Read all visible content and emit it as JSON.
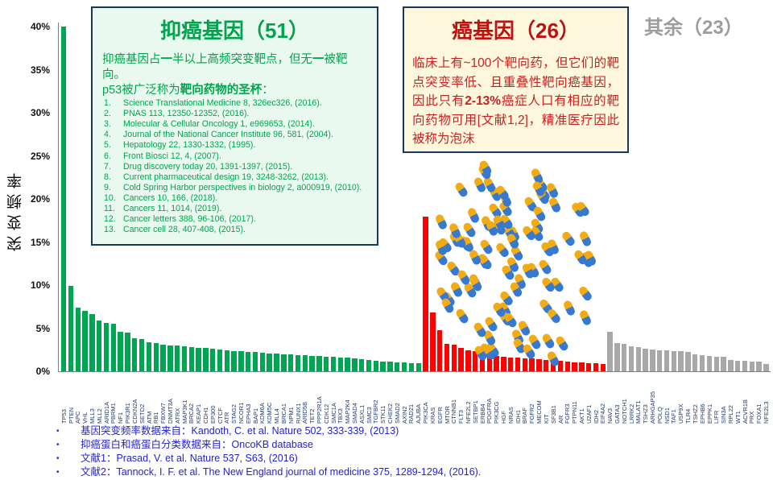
{
  "y_axis": {
    "title": "突变频率"
  },
  "chart_data": {
    "type": "bar",
    "title": "",
    "xlabel": "",
    "ylabel": "突变频率",
    "ylim": [
      0,
      40
    ],
    "yticks_percent": [
      0,
      5,
      10,
      15,
      20,
      25,
      30,
      35,
      40
    ],
    "grid": false,
    "legend_position": "none",
    "groups": [
      {
        "name": "tumor-suppressor-genes",
        "label": "抑癌基因（51）",
        "color": "#00A551",
        "genes": [
          "TP53",
          "PTEN",
          "APC",
          "VHL",
          "MLL3",
          "MLL2",
          "ARID1A",
          "PBRM1",
          "NF1",
          "PIK3R1",
          "CDKN2A",
          "SETD2",
          "ATM",
          "RB1",
          "FBXW7",
          "DNMT3A",
          "ATRX",
          "MAP3K1",
          "BRCA2",
          "KEAP1",
          "CDH1",
          "EP300",
          "CTCF",
          "ATR",
          "STAG2",
          "NCOR1",
          "EPHA3",
          "BAP1",
          "KDM6A",
          "KDM5C",
          "MLL4",
          "BRCA1",
          "NPM1",
          "RUNX1",
          "ARID5B",
          "TET2",
          "PPP2R1A",
          "CDK12",
          "SMC1A",
          "TBX3",
          "MAP2K4",
          "SMAD4",
          "ASXL1",
          "SMC3",
          "TGFBR2",
          "STK11",
          "CHEK2",
          "SMAD2",
          "AXIN2",
          "RAD21",
          "AJUBA"
        ],
        "values": [
          40,
          9.9,
          7.4,
          7.0,
          6.6,
          5.9,
          5.6,
          5.5,
          4.6,
          4.5,
          3.8,
          3.7,
          3.4,
          3.3,
          3.1,
          3.0,
          2.95,
          2.9,
          2.8,
          2.75,
          2.7,
          2.65,
          2.55,
          2.45,
          2.35,
          2.3,
          2.25,
          2.2,
          2.15,
          2.1,
          2.05,
          2.0,
          1.95,
          1.9,
          1.85,
          1.8,
          1.75,
          1.7,
          1.65,
          1.6,
          1.55,
          1.5,
          1.4,
          1.3,
          1.25,
          1.15,
          1.1,
          1.05,
          1.0,
          0.95,
          0.9
        ]
      },
      {
        "name": "oncogenes",
        "label": "癌基因（26）",
        "color": "#FF0000",
        "genes": [
          "PIK3CA",
          "KRAS",
          "EGFR",
          "MTOR",
          "CTNNB1",
          "FLT3",
          "NFE2L2",
          "SETBP1",
          "ERBB4",
          "PDGFRA",
          "PIK3CG",
          "HGF",
          "NRAS",
          "IDH1",
          "BRAF",
          "FGFR2",
          "MECOM",
          "KIT",
          "SF3B1",
          "AR",
          "FGFR3",
          "PTPN11",
          "AKT1",
          "U2AF1",
          "IDH2",
          "EIF4A2"
        ],
        "values": [
          17.9,
          6.8,
          4.8,
          3.2,
          3.1,
          2.7,
          2.4,
          2.3,
          2.1,
          1.9,
          1.8,
          1.7,
          1.6,
          1.55,
          1.5,
          1.45,
          1.4,
          1.35,
          1.25,
          1.2,
          1.1,
          1.05,
          1.0,
          0.95,
          0.9,
          0.85
        ]
      },
      {
        "name": "others",
        "label": "其余（23）",
        "color": "#A8A8A8",
        "genes": [
          "NAV3",
          "GATA3",
          "NOTCH1",
          "LRRK2",
          "MALAT1",
          "TSHZ3",
          "ARHGAP35",
          "POLQ",
          "NSD1",
          "TAF1",
          "USP9X",
          "TLR4",
          "TSHZ2",
          "EPHB6",
          "EPPK1",
          "LIFR",
          "SIN3A",
          "RPL22",
          "WT1",
          "ACVR1B",
          "PRX",
          "FOXA1",
          "NFE2L3"
        ],
        "values": [
          4.6,
          3.3,
          3.2,
          2.9,
          2.8,
          2.65,
          2.5,
          2.45,
          2.4,
          2.35,
          2.3,
          2.2,
          2.0,
          1.9,
          1.8,
          1.7,
          1.65,
          1.3,
          1.25,
          1.2,
          1.15,
          1.1,
          0.8
        ]
      }
    ]
  },
  "suppressor_box": {
    "title": "抑癌基因（51）",
    "body1_segments": [
      {
        "t": "抑癌基因占"
      },
      {
        "t": "一",
        "b": 1
      },
      {
        "t": "半以上高频突变靶点，但无"
      },
      {
        "t": "一",
        "b": 1
      },
      {
        "t": "被靶向。"
      }
    ],
    "body2_segments": [
      {
        "t": "p53被广泛称为"
      },
      {
        "t": "靶向药物的圣杯",
        "b": 1
      },
      {
        "t": "："
      }
    ],
    "references": [
      "Science Translational Medicine 8, 326ec326, (2016).",
      "PNAS 113, 12350-12352, (2016).",
      "Molecular & Cellular Oncology 1, e969653, (2014).",
      "Journal of the National Cancer Institute 96, 581, (2004).",
      "Hepatology 22, 1330-1332, (1995).",
      "Front Biosci 12, 4, (2007).",
      "Drug discovery today 20, 1391-1397, (2015).",
      "Current pharmaceutical design 19, 3248-3262, (2013).",
      "Cold Spring Harbor perspectives in biology 2, a000919, (2010).",
      "Cancers 10, 166, (2018).",
      "Cancers 11, 1014, (2019).",
      "Cancer letters 388, 96-106, (2017).",
      "Cancer cell 28, 407-408, (2015)."
    ]
  },
  "oncogene_box": {
    "title": "癌基因（26）",
    "body_segments": [
      {
        "t": "临床上有~100个靶向药，但它们的靶点突变率低、且重叠性靶向癌基因，因此只有"
      },
      {
        "t": "2-13%",
        "b": 1
      },
      {
        "t": "癌症人口有相应的靶向药物可用[文献1,2]，精准医疗因此被称为泡沫"
      }
    ]
  },
  "other_label": "其余（23）",
  "footnotes": [
    {
      "label": "基因突变频率数据来自：",
      "text": "Kandoth, C. et al. Nature 502, 333-339, (2013)"
    },
    {
      "label": "抑癌蛋白和癌蛋白分类数据来自：",
      "text": "OncoKB database"
    },
    {
      "label": "文献1：",
      "text": "Prasad, V. et al. Nature 537, S63, (2016)"
    },
    {
      "label": "文献2：",
      "text": "Tannock, I. F. et al. The New England journal of medicine 375, 1289-1294, (2016)."
    }
  ],
  "pills": {
    "count": 100,
    "top_color": "#F1AB14",
    "bottom_color": "#3679CF"
  },
  "colors": {
    "suppressor_green": "#00A551",
    "oncogene_red": "#FF0000",
    "other_gray": "#A8A8A8",
    "box_border": "#16375E",
    "suppressor_box_bg": "#EAF9EF",
    "oncogene_box_bg": "#FDF7DE",
    "footnote_blue": "#2323CC",
    "gene_label_navy": "#1F3864"
  }
}
